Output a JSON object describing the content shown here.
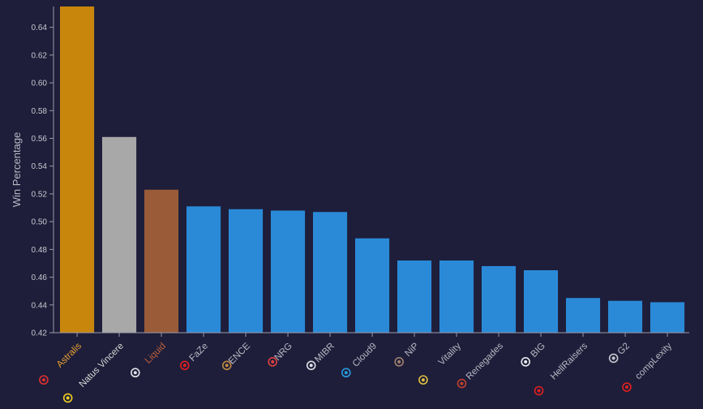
{
  "chart_data": {
    "type": "bar",
    "title": "",
    "xlabel": "",
    "ylabel": "Win Percentage",
    "ylim": [
      0.42,
      0.655
    ],
    "yticks": [
      0.42,
      0.44,
      0.46,
      0.48,
      0.5,
      0.52,
      0.54,
      0.56,
      0.58,
      0.6,
      0.62,
      0.64
    ],
    "ytick_labels": [
      "0.42",
      "0.44",
      "0.46",
      "0.48",
      "0.50",
      "0.52",
      "0.54",
      "0.56",
      "0.58",
      "0.60",
      "0.62",
      "0.64"
    ],
    "grid": false,
    "categories": [
      "Astralis",
      "Natus Vincere",
      "Liquid",
      "FaZe",
      "ENCE",
      "NRG",
      "MIBR",
      "Cloud9",
      "NiP",
      "Vitality",
      "Renegades",
      "BIG",
      "HellRaisers",
      "G2",
      "compLexity"
    ],
    "values": [
      0.655,
      0.561,
      0.523,
      0.511,
      0.509,
      0.508,
      0.507,
      0.488,
      0.472,
      0.472,
      0.468,
      0.465,
      0.445,
      0.443,
      0.442
    ],
    "bar_colors": [
      "#c8860d",
      "#a8a8a8",
      "#9a5b38",
      "#2a8ad8",
      "#2a8ad8",
      "#2a8ad8",
      "#2a8ad8",
      "#2a8ad8",
      "#2a8ad8",
      "#2a8ad8",
      "#2a8ad8",
      "#2a8ad8",
      "#2a8ad8",
      "#2a8ad8",
      "#2a8ad8"
    ],
    "label_colors": [
      "#e8a030",
      "#d8d8d8",
      "#c0603a",
      "#b8b8c4",
      "#b8b8c4",
      "#b8b8c4",
      "#b8b8c4",
      "#b8b8c4",
      "#b8b8c4",
      "#b8b8c4",
      "#b8b8c4",
      "#b8b8c4",
      "#b8b8c4",
      "#b8b8c4",
      "#b8b8c4"
    ],
    "team_logos": [
      {
        "icon": "astralis-logo-icon",
        "color": "#e03030"
      },
      {
        "icon": "natus-vincere-logo-icon",
        "color": "#f0d020"
      },
      {
        "icon": "liquid-logo-icon",
        "color": "#e0e0e8"
      },
      {
        "icon": "faze-logo-icon",
        "color": "#e02020"
      },
      {
        "icon": "ence-logo-icon",
        "color": "#c08a40"
      },
      {
        "icon": "nrg-logo-icon",
        "color": "#e04040"
      },
      {
        "icon": "mibr-logo-icon",
        "color": "#e0e0e8"
      },
      {
        "icon": "cloud9-logo-icon",
        "color": "#2a9ae0"
      },
      {
        "icon": "nip-logo-icon",
        "color": "#a08070"
      },
      {
        "icon": "vitality-logo-icon",
        "color": "#e0c040"
      },
      {
        "icon": "renegades-logo-icon",
        "color": "#c04030"
      },
      {
        "icon": "big-logo-icon",
        "color": "#e8e8ee"
      },
      {
        "icon": "hellraisers-logo-icon",
        "color": "#e02020"
      },
      {
        "icon": "g2-logo-icon",
        "color": "#c8c8d0"
      },
      {
        "icon": "complexity-logo-icon",
        "color": "#e02020"
      }
    ]
  }
}
